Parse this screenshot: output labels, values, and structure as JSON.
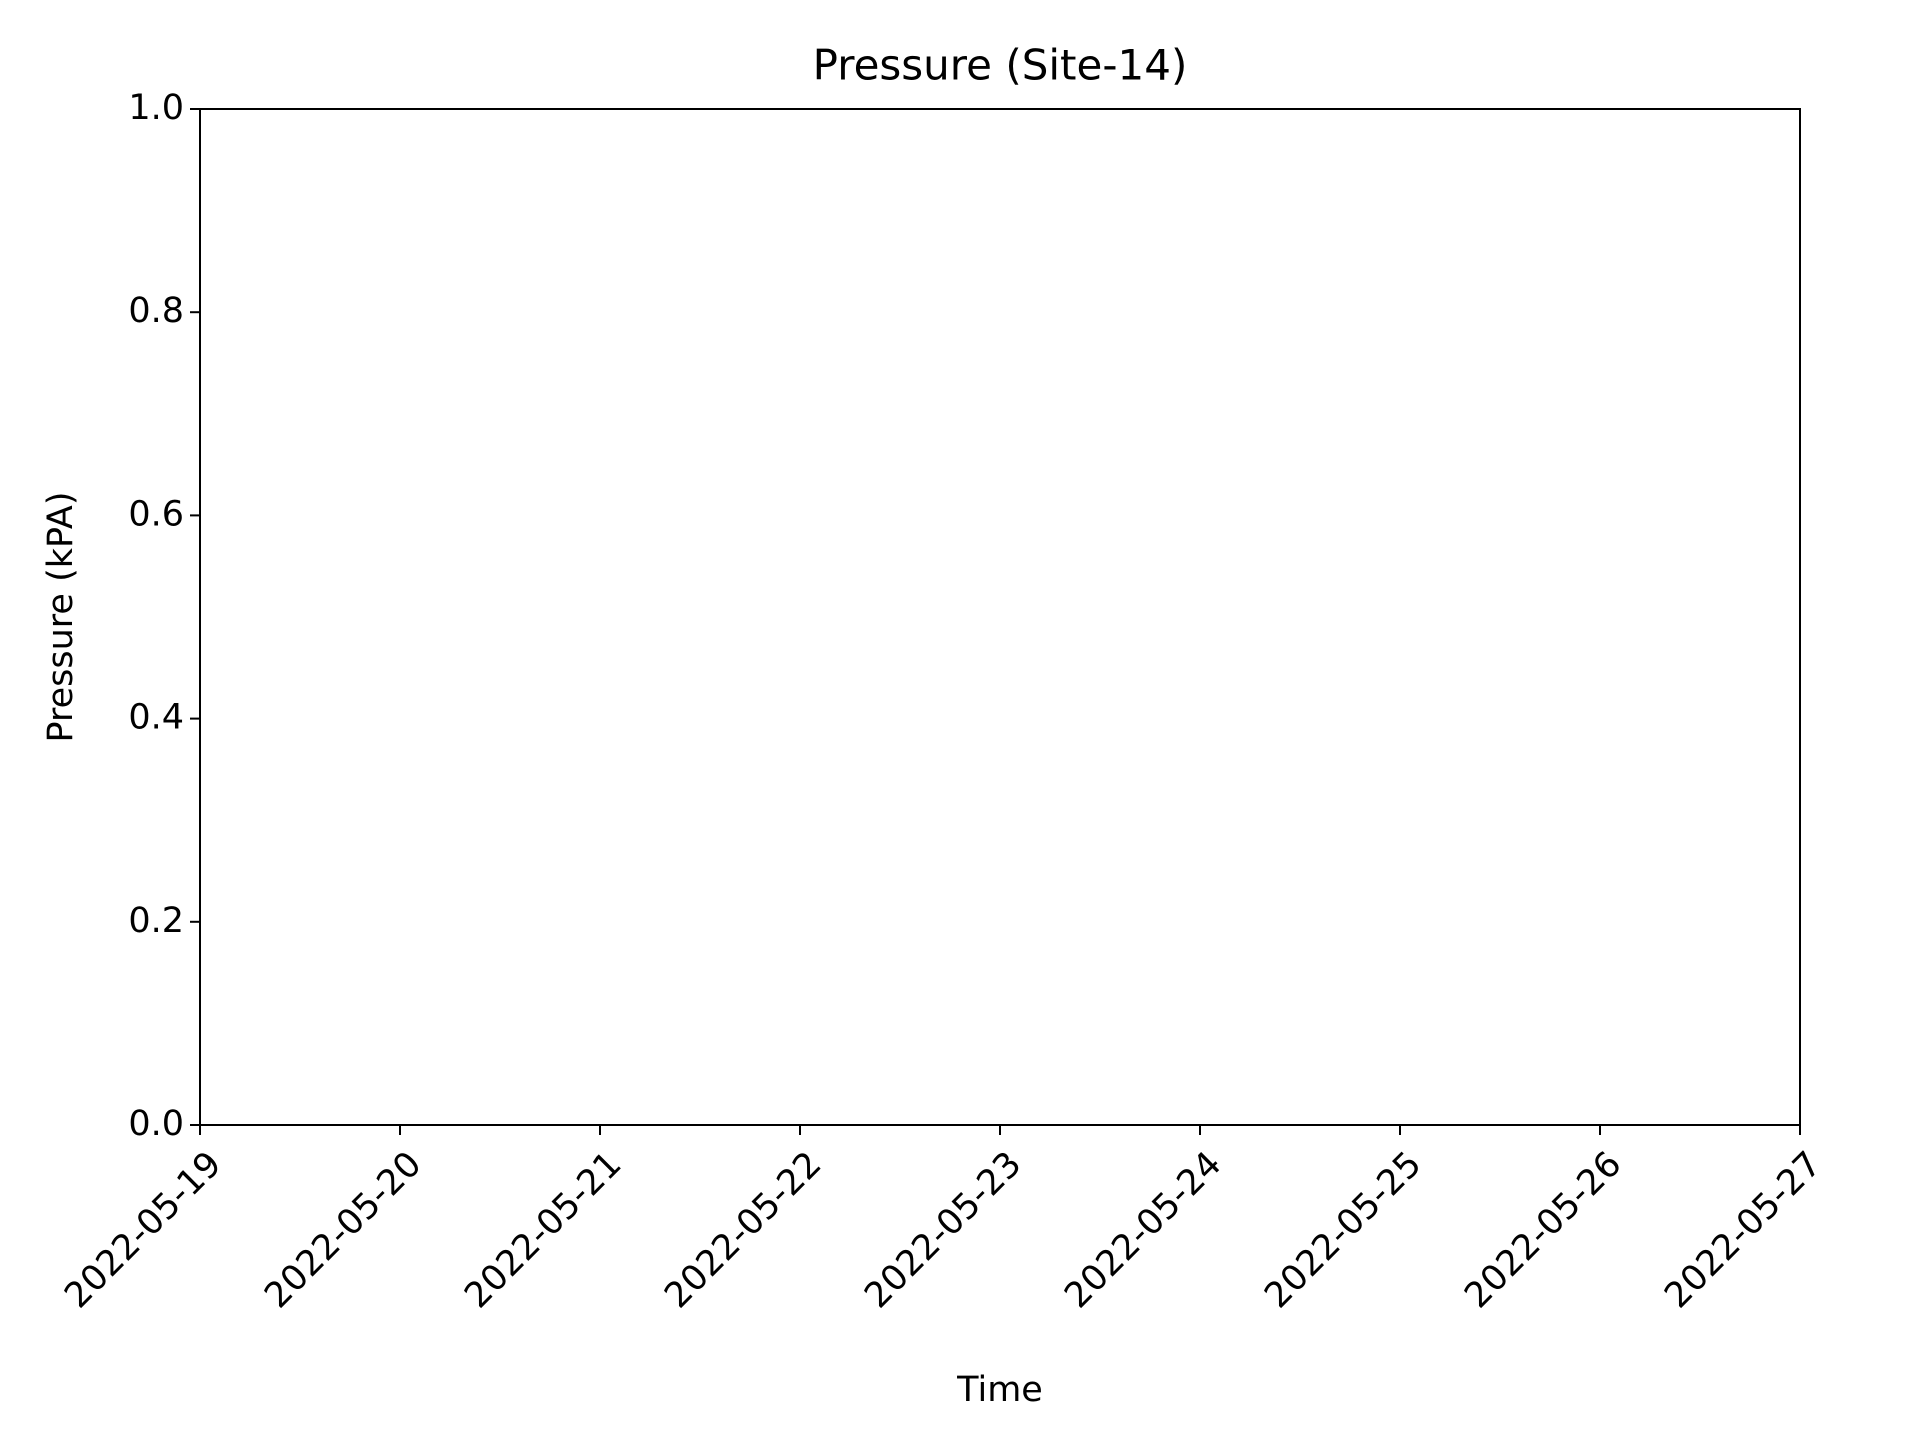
{
  "chart_data": {
    "type": "line",
    "title": "Pressure (Site-14)",
    "xlabel": "Time",
    "ylabel": "Pressure (kPA)",
    "xlim": [
      "2022-05-19",
      "2022-05-27"
    ],
    "xticks": [
      "2022-05-19",
      "2022-05-20",
      "2022-05-21",
      "2022-05-22",
      "2022-05-23",
      "2022-05-24",
      "2022-05-25",
      "2022-05-26",
      "2022-05-27"
    ],
    "ylim": [
      0,
      1
    ],
    "yticks": [
      {
        "value": 0,
        "label": "0.0"
      },
      0.2,
      0.4,
      0.6,
      0.8,
      {
        "value": 1,
        "label": "1.0"
      }
    ],
    "grid": false
  }
}
